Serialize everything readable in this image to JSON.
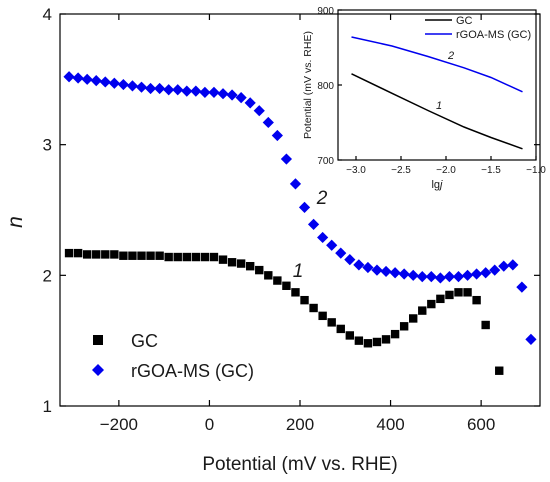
{
  "chart_data": [
    {
      "type": "scatter",
      "xlabel": "Potential (mV vs. RHE)",
      "ylabel": "n",
      "xlim": [
        -330,
        730
      ],
      "ylim": [
        1,
        4
      ],
      "xticks": [
        -200,
        0,
        200,
        400,
        600
      ],
      "yticks": [
        1,
        2,
        3,
        4
      ],
      "grid": false,
      "legend_position": "bottom-left",
      "series": [
        {
          "name": "GC",
          "label": "1",
          "marker": "square",
          "color": "#000000",
          "x": [
            -310,
            -290,
            -270,
            -250,
            -230,
            -210,
            -190,
            -170,
            -150,
            -130,
            -110,
            -90,
            -70,
            -50,
            -30,
            -10,
            10,
            30,
            50,
            70,
            90,
            110,
            130,
            150,
            170,
            190,
            210,
            230,
            250,
            270,
            290,
            310,
            330,
            350,
            370,
            390,
            410,
            430,
            450,
            470,
            490,
            510,
            530,
            550,
            570,
            590,
            610,
            640
          ],
          "y": [
            2.17,
            2.17,
            2.16,
            2.16,
            2.16,
            2.16,
            2.15,
            2.15,
            2.15,
            2.15,
            2.15,
            2.14,
            2.14,
            2.14,
            2.14,
            2.14,
            2.14,
            2.12,
            2.1,
            2.09,
            2.07,
            2.04,
            2.0,
            1.96,
            1.92,
            1.87,
            1.81,
            1.75,
            1.69,
            1.64,
            1.59,
            1.54,
            1.5,
            1.48,
            1.49,
            1.51,
            1.55,
            1.61,
            1.67,
            1.73,
            1.78,
            1.82,
            1.85,
            1.87,
            1.87,
            1.81,
            1.62,
            1.27
          ]
        },
        {
          "name": "rGOA-MS (GC)",
          "label": "2",
          "marker": "diamond",
          "color": "#0000ee",
          "x": [
            -310,
            -290,
            -270,
            -250,
            -230,
            -210,
            -190,
            -170,
            -150,
            -130,
            -110,
            -90,
            -70,
            -50,
            -30,
            -10,
            10,
            30,
            50,
            70,
            90,
            110,
            130,
            150,
            170,
            190,
            210,
            230,
            250,
            270,
            290,
            310,
            330,
            350,
            370,
            390,
            410,
            430,
            450,
            470,
            490,
            510,
            530,
            550,
            570,
            590,
            610,
            630,
            650,
            670,
            690,
            710
          ],
          "y": [
            3.52,
            3.51,
            3.5,
            3.49,
            3.48,
            3.47,
            3.46,
            3.45,
            3.44,
            3.43,
            3.43,
            3.42,
            3.42,
            3.41,
            3.41,
            3.4,
            3.4,
            3.39,
            3.38,
            3.36,
            3.32,
            3.26,
            3.17,
            3.07,
            2.89,
            2.7,
            2.52,
            2.39,
            2.29,
            2.23,
            2.17,
            2.12,
            2.08,
            2.06,
            2.04,
            2.03,
            2.02,
            2.01,
            2.0,
            1.99,
            1.99,
            1.98,
            1.99,
            1.99,
            2.0,
            2.01,
            2.02,
            2.04,
            2.07,
            2.08,
            1.91,
            1.51
          ]
        }
      ],
      "annotations": [
        {
          "text": "1",
          "x": 195,
          "y": 2.05
        },
        {
          "text": "2",
          "x": 247,
          "y": 2.56
        }
      ]
    },
    {
      "type": "line",
      "xlabel": "lgj",
      "ylabel": "Potential (mV vs. RHE)",
      "xlim": [
        -3.2,
        -1.0
      ],
      "ylim": [
        700,
        900
      ],
      "xticks": [
        -3.0,
        -2.5,
        -2.0,
        -1.5,
        -1.0
      ],
      "yticks": [
        700,
        800,
        900
      ],
      "grid": false,
      "legend_position": "top-right",
      "series": [
        {
          "name": "GC",
          "label": "1",
          "color": "#000000",
          "x": [
            -3.05,
            -2.6,
            -2.2,
            -1.8,
            -1.5,
            -1.15
          ],
          "y": [
            815,
            789,
            766,
            744,
            730,
            715
          ]
        },
        {
          "name": "rGOA-MS (GC)",
          "label": "2",
          "color": "#0000ee",
          "x": [
            -3.05,
            -2.6,
            -2.2,
            -1.8,
            -1.5,
            -1.15
          ],
          "y": [
            864,
            852,
            838,
            823,
            810,
            791
          ]
        }
      ],
      "annotations": [
        {
          "text": "1",
          "x": -2.03,
          "y": 773
        },
        {
          "text": "2",
          "x": -1.97,
          "y": 844
        }
      ]
    }
  ]
}
